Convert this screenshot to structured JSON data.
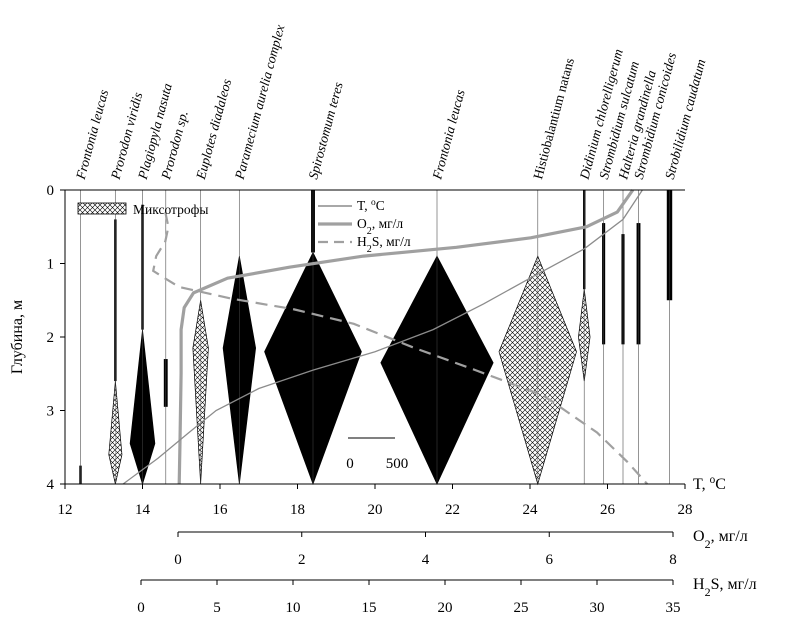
{
  "chart_data": {
    "type": "line",
    "ylabel": "Глубина, м",
    "ylim": [
      0,
      4
    ],
    "y_ticks": [
      "0",
      "1",
      "2",
      "3",
      "4"
    ],
    "axes": {
      "T": {
        "label": "T, °C",
        "range": [
          12,
          28
        ],
        "ticks": [
          "12",
          "14",
          "16",
          "18",
          "20",
          "22",
          "24",
          "26",
          "28"
        ]
      },
      "O2": {
        "label": "O₂, мг/л",
        "range": [
          0,
          8
        ],
        "ticks": [
          "0",
          "2",
          "4",
          "6",
          "8"
        ]
      },
      "H2S": {
        "label": "H₂S, мг/л",
        "range": [
          0,
          35
        ],
        "ticks": [
          "0",
          "5",
          "10",
          "15",
          "20",
          "25",
          "30",
          "35"
        ]
      }
    },
    "legend": [
      {
        "name": "Миксотрофы",
        "style": "crosshatch"
      },
      {
        "name": "T, °C",
        "style": "thin-line"
      },
      {
        "name": "O₂, мг/л",
        "style": "thick-line"
      },
      {
        "name": "H₂S, мг/л",
        "style": "dashed-line"
      }
    ],
    "profiles": {
      "T": [
        [
          26.9,
          0
        ],
        [
          26.4,
          0.4
        ],
        [
          25.4,
          0.8
        ],
        [
          24,
          1.2
        ],
        [
          22.8,
          1.55
        ],
        [
          21.5,
          1.9
        ],
        [
          20,
          2.2
        ],
        [
          18.4,
          2.45
        ],
        [
          17,
          2.7
        ],
        [
          15.9,
          3.0
        ],
        [
          15.2,
          3.3
        ],
        [
          14.4,
          3.65
        ],
        [
          13.5,
          4.0
        ]
      ],
      "O2": [
        [
          7.35,
          0
        ],
        [
          7.1,
          0.3
        ],
        [
          6.6,
          0.5
        ],
        [
          5.7,
          0.65
        ],
        [
          4.5,
          0.78
        ],
        [
          3.0,
          0.9
        ],
        [
          1.8,
          1.05
        ],
        [
          0.8,
          1.2
        ],
        [
          0.25,
          1.4
        ],
        [
          0.1,
          1.6
        ],
        [
          0.05,
          1.9
        ],
        [
          0.05,
          2.5
        ],
        [
          0.03,
          3.5
        ],
        [
          0.02,
          4.0
        ]
      ],
      "H2S": [
        [
          1.6,
          0.3
        ],
        [
          1.8,
          0.5
        ],
        [
          1.6,
          0.7
        ],
        [
          1.0,
          0.9
        ],
        [
          0.8,
          1.1
        ],
        [
          2.5,
          1.32
        ],
        [
          6.0,
          1.48
        ],
        [
          10.0,
          1.62
        ],
        [
          14.0,
          1.82
        ],
        [
          18.0,
          2.15
        ],
        [
          22.0,
          2.45
        ],
        [
          26.5,
          2.8
        ],
        [
          30.0,
          3.3
        ],
        [
          32.0,
          3.7
        ],
        [
          33.3,
          4.0
        ]
      ]
    },
    "scale_bar": {
      "label_start": "0",
      "label_end": "500"
    },
    "species": [
      {
        "name": "Frontonia leucas",
        "temp": 12.4,
        "mixotroph": false,
        "layers": [
          {
            "top": 3.75,
            "bottom": 4.0,
            "halfwidth": 0.03
          }
        ]
      },
      {
        "name": "Prorodon viridis",
        "temp": 13.3,
        "mixotroph": true,
        "layers": [
          {
            "top": 0.4,
            "bottom": 2.6,
            "halfwidth": 0.02
          },
          {
            "top": 2.6,
            "mid": 3.6,
            "bottom": 4.0,
            "halfwidth": 0.17
          }
        ]
      },
      {
        "name": "Plagiopyla nasuta",
        "temp": 14.0,
        "mixotroph": false,
        "layers": [
          {
            "top": 0.2,
            "bottom": 1.9,
            "halfwidth": 0.02
          },
          {
            "top": 1.9,
            "mid": 3.45,
            "bottom": 4.0,
            "halfwidth": 0.32
          }
        ]
      },
      {
        "name": "Prorodon sp.",
        "temp": 14.6,
        "mixotroph": false,
        "layers": [
          {
            "top": 2.3,
            "bottom": 2.95,
            "halfwidth": 0.05
          }
        ]
      },
      {
        "name": "Euplotes diadaleos",
        "temp": 15.5,
        "mixotroph": true,
        "layers": [
          {
            "top": 1.5,
            "mid": 2.15,
            "bottom": 4.0,
            "halfwidth": 0.2
          }
        ]
      },
      {
        "name": "Paramecium aurelia complex",
        "temp": 16.5,
        "mixotroph": false,
        "layers": [
          {
            "top": 0.9,
            "mid": 2.15,
            "bottom": 4.0,
            "halfwidth": 0.42
          }
        ]
      },
      {
        "name": "Spirostomum teres",
        "temp": 18.4,
        "mixotroph": false,
        "layers": [
          {
            "top": 0,
            "bottom": 0.85,
            "halfwidth": 0.05
          },
          {
            "top": 0.85,
            "mid": 2.2,
            "bottom": 4.0,
            "halfwidth": 1.25
          }
        ]
      },
      {
        "name": "Frontonia leucas",
        "temp": 21.6,
        "mixotroph": false,
        "layers": [
          {
            "top": 0.9,
            "mid": 2.35,
            "bottom": 4.0,
            "halfwidth": 1.45
          }
        ]
      },
      {
        "name": "Histiobalantium natans",
        "temp": 24.2,
        "mixotroph": true,
        "layers": [
          {
            "top": 0.9,
            "mid": 2.2,
            "bottom": 4.0,
            "halfwidth": 1.0
          }
        ]
      },
      {
        "name": "Didinium chlorelligerum",
        "temp": 25.4,
        "mixotroph": true,
        "layers": [
          {
            "top": 0,
            "bottom": 1.35,
            "halfwidth": 0.02
          },
          {
            "top": 1.35,
            "mid": 2.0,
            "bottom": 2.6,
            "halfwidth": 0.15
          }
        ]
      },
      {
        "name": "Strombidium sulcatum",
        "temp": 25.9,
        "mixotroph": false,
        "layers": [
          {
            "top": 0.45,
            "bottom": 2.1,
            "halfwidth": 0.04
          }
        ]
      },
      {
        "name": "Halteria grandinella",
        "temp": 26.4,
        "mixotroph": false,
        "layers": [
          {
            "top": 0.6,
            "bottom": 2.1,
            "halfwidth": 0.04
          }
        ]
      },
      {
        "name": "Strombidium conicoides",
        "temp": 26.8,
        "mixotroph": false,
        "layers": [
          {
            "top": 0.45,
            "bottom": 2.1,
            "halfwidth": 0.05
          }
        ]
      },
      {
        "name": "Strobilidium caudatum",
        "temp": 27.6,
        "mixotroph": false,
        "layers": [
          {
            "top": 0,
            "bottom": 1.5,
            "halfwidth": 0.07
          }
        ]
      }
    ]
  }
}
